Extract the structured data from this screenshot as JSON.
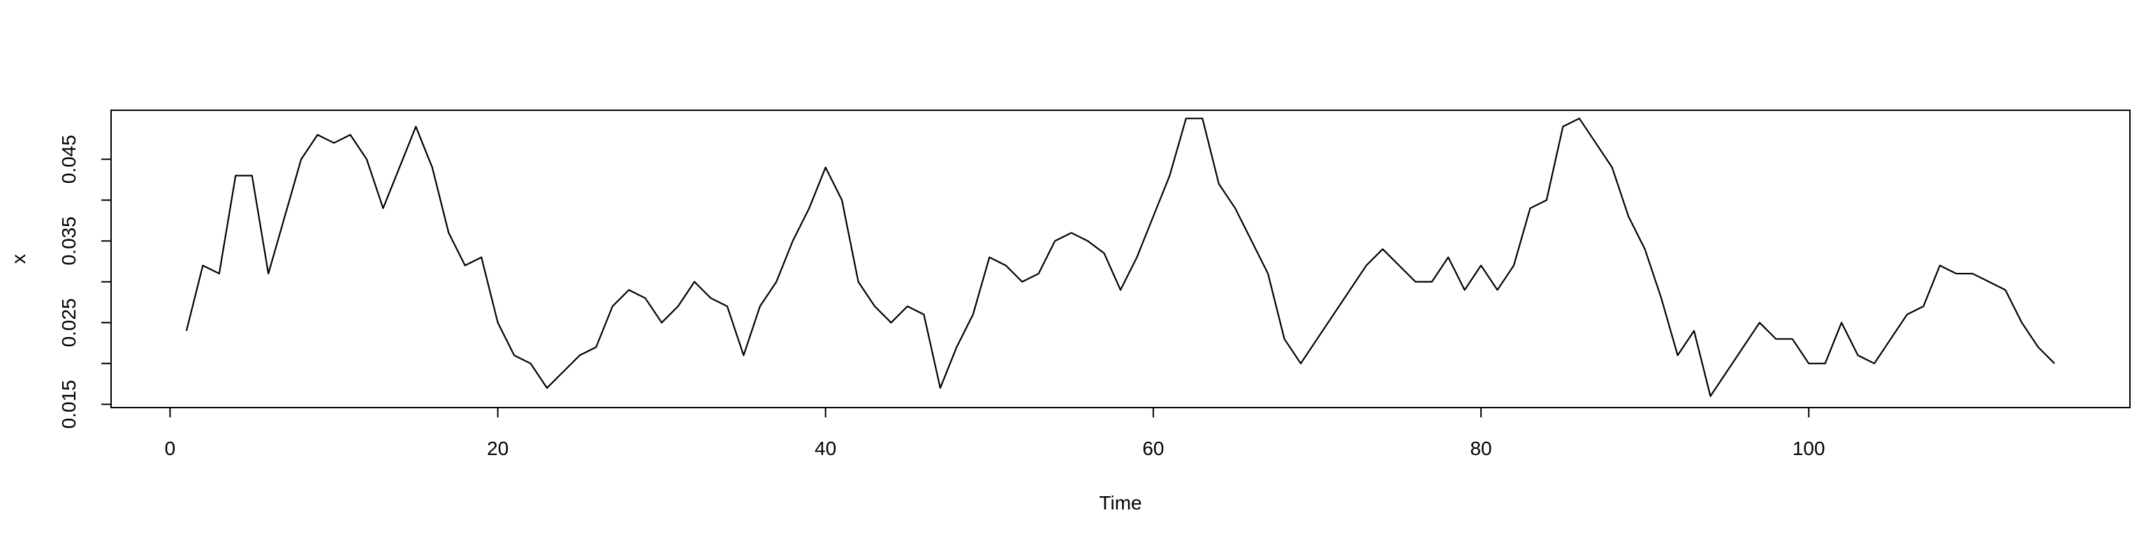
{
  "chart_data": {
    "type": "line",
    "title": "",
    "xlabel": "Time",
    "ylabel": "x",
    "xlim": [
      -3.6,
      119.6
    ],
    "ylim": [
      0.0146,
      0.051
    ],
    "x_ticks": [
      0,
      20,
      40,
      60,
      80,
      100
    ],
    "x_tick_labels": [
      "0",
      "20",
      "40",
      "60",
      "80",
      "100"
    ],
    "y_ticks": [
      0.015,
      0.02,
      0.025,
      0.03,
      0.035,
      0.04,
      0.045
    ],
    "y_tick_labels": [
      "0.015",
      "0.025",
      "0.035",
      "0.045"
    ],
    "grid": false,
    "legend": "none",
    "line_color": "#000000",
    "series": [
      {
        "x": [
          1,
          2,
          3,
          4,
          5,
          6,
          7,
          8,
          9,
          10,
          11,
          12,
          13,
          14,
          15,
          16,
          17,
          18,
          19,
          20,
          21,
          22,
          23,
          24,
          25,
          26,
          27,
          28,
          29,
          30,
          31,
          32,
          33,
          34,
          35,
          36,
          37,
          38,
          39,
          40,
          41,
          42,
          43,
          44,
          45,
          46,
          47,
          48,
          49,
          50,
          51,
          52,
          53,
          54,
          55,
          56,
          57,
          58,
          59,
          60,
          61,
          62,
          63,
          64,
          65,
          66,
          67,
          68,
          69,
          70,
          71,
          72,
          73,
          74,
          75,
          76,
          77,
          78,
          79,
          80,
          81,
          82,
          83,
          84,
          85,
          86,
          87,
          88,
          89,
          90,
          91,
          92,
          93,
          94,
          95,
          96,
          97,
          98,
          99,
          100,
          101,
          102,
          103,
          104,
          105,
          106,
          107,
          108,
          109,
          110,
          111,
          112,
          113,
          114,
          115
        ],
        "values": [
          0.024,
          0.032,
          0.031,
          0.043,
          0.043,
          0.031,
          0.038,
          0.045,
          0.048,
          0.047,
          0.048,
          0.045,
          0.039,
          0.044,
          0.049,
          0.044,
          0.036,
          0.032,
          0.033,
          0.025,
          0.021,
          0.02,
          0.017,
          0.019,
          0.021,
          0.022,
          0.027,
          0.029,
          0.028,
          0.025,
          0.027,
          0.03,
          0.028,
          0.027,
          0.021,
          0.027,
          0.03,
          0.035,
          0.039,
          0.044,
          0.04,
          0.03,
          0.027,
          0.025,
          0.027,
          0.026,
          0.017,
          0.022,
          0.026,
          0.033,
          0.032,
          0.03,
          0.031,
          0.035,
          0.036,
          0.035,
          0.0335,
          0.029,
          0.033,
          0.038,
          0.043,
          0.05,
          0.05,
          0.042,
          0.039,
          0.035,
          0.031,
          0.023,
          0.02,
          0.023,
          0.026,
          0.029,
          0.032,
          0.034,
          0.032,
          0.03,
          0.03,
          0.033,
          0.029,
          0.032,
          0.029,
          0.032,
          0.039,
          0.04,
          0.049,
          0.05,
          0.047,
          0.044,
          0.038,
          0.034,
          0.028,
          0.021,
          0.024,
          0.016,
          0.019,
          0.022,
          0.025,
          0.023,
          0.023,
          0.02,
          0.02,
          0.025,
          0.021,
          0.02,
          0.023,
          0.026,
          0.027,
          0.032,
          0.031,
          0.031,
          0.03,
          0.029,
          0.025,
          0.022,
          0.02
        ]
      }
    ]
  }
}
